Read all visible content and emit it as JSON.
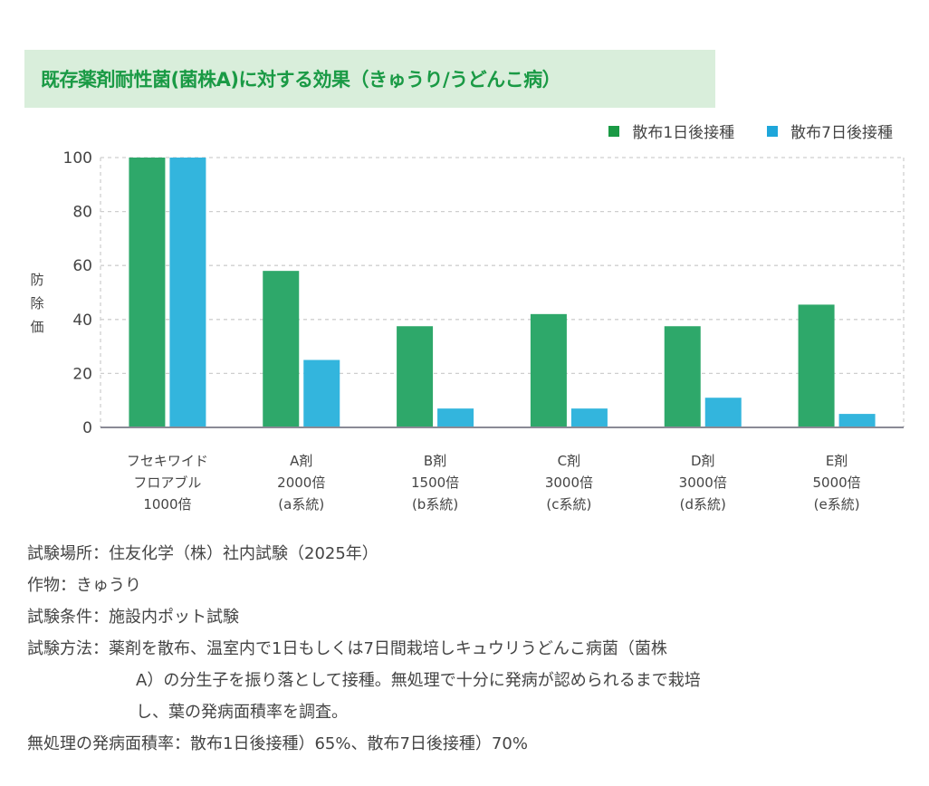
{
  "title": "既存薬剤耐性菌(菌株A)に対する効果（きゅうり/うどんこ病）",
  "colors": {
    "title_bg": "#d9eedb",
    "title_text": "#1a9a45",
    "series1": "#2ea86a",
    "series2": "#33b5dd"
  },
  "chart_data": {
    "type": "bar",
    "title": "既存薬剤耐性菌(菌株A)に対する効果（きゅうり/うどんこ病）",
    "xlabel": "",
    "ylabel": "防除価",
    "ylim": [
      0,
      100
    ],
    "yticks": [
      0,
      20,
      40,
      60,
      80,
      100
    ],
    "grid": true,
    "legend_position": "top-right",
    "categories": [
      [
        "フセキワイド",
        "フロアブル",
        "1000倍"
      ],
      [
        "A剤",
        "2000倍",
        "(a系統)"
      ],
      [
        "B剤",
        "1500倍",
        "(b系統)"
      ],
      [
        "C剤",
        "3000倍",
        "(c系統)"
      ],
      [
        "D剤",
        "3000倍",
        "(d系統)"
      ],
      [
        "E剤",
        "5000倍",
        "(e系統)"
      ]
    ],
    "series": [
      {
        "name": "散布1日後接種",
        "color": "#2ea86a",
        "values": [
          100,
          58,
          37.5,
          42,
          37.5,
          45.5
        ]
      },
      {
        "name": "散布7日後接種",
        "color": "#33b5dd",
        "values": [
          100,
          25,
          7,
          7,
          11,
          5
        ]
      }
    ]
  },
  "notes": [
    {
      "key": "試験場所：",
      "value": "住友化学（株）社内試験（2025年）"
    },
    {
      "key": "作物：",
      "value": "きゅうり"
    },
    {
      "key": "試験条件：",
      "value": "施設内ポット試験"
    },
    {
      "key": "試験方法：",
      "value": "薬剤を散布、温室内で1日もしくは7日間栽培しキュウリうどんこ病菌（菌株",
      "continuation": [
        "A）の分生子を振り落として接種。無処理で十分に発病が認められるまで栽培",
        "し、葉の発病面積率を調査。"
      ]
    },
    {
      "key": "無処理の発病面積率：",
      "value": "散布1日後接種）65%、散布7日後接種）70%"
    }
  ]
}
